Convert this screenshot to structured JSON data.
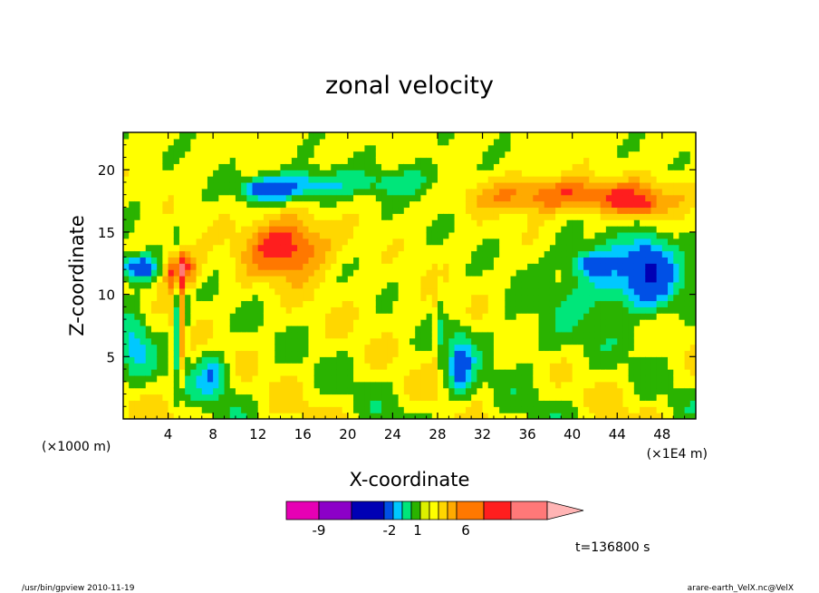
{
  "chart_data": {
    "type": "heatmap",
    "title": "zonal velocity",
    "xlabel": "X-coordinate",
    "ylabel": "Z-coordinate",
    "x_scale_label": "(×1000 m)",
    "x_unit_label": "(×1E4 m)",
    "xlim": [
      0,
      51
    ],
    "ylim": [
      0,
      23
    ],
    "xticks": [
      "4",
      "8",
      "12",
      "16",
      "20",
      "24",
      "28",
      "32",
      "36",
      "40",
      "44",
      "48"
    ],
    "xtick_values": [
      4,
      8,
      12,
      16,
      20,
      24,
      28,
      32,
      36,
      40,
      44,
      48
    ],
    "yticks": [
      "5",
      "10",
      "15",
      "20"
    ],
    "ytick_values": [
      5,
      10,
      15,
      20
    ],
    "colorbar": {
      "labels": [
        {
          "text": "-9",
          "value": -9
        },
        {
          "text": "-2",
          "value": -2
        },
        {
          "text": "1",
          "value": 1
        },
        {
          "text": "6",
          "value": 6
        }
      ],
      "colors": [
        "#e600b4",
        "#8c00c8",
        "#0000b4",
        "#0050e6",
        "#00c8ff",
        "#00e67a",
        "#2ab300",
        "#dcf000",
        "#ffff00",
        "#ffd700",
        "#ffaa00",
        "#ff7800",
        "#ff1e1e",
        "#ff7878",
        "#ffb4b4"
      ]
    },
    "time_label": "t=136800 s",
    "value_levels": [
      -12,
      -9,
      -6,
      -3,
      -2,
      -1,
      0,
      1,
      2,
      3,
      4,
      6,
      9,
      12
    ],
    "regions": [
      {
        "name": "upper-left blue jet",
        "x": [
          11,
          16
        ],
        "z": [
          17.5,
          19.5
        ],
        "u": -4
      },
      {
        "name": "left blue band",
        "x": [
          0,
          4
        ],
        "z": [
          11,
          13.5
        ],
        "u": -4
      },
      {
        "name": "orange lobe",
        "x": [
          11,
          19
        ],
        "z": [
          12,
          16.5
        ],
        "u": 4
      },
      {
        "name": "right blue core",
        "x": [
          40,
          51
        ],
        "z": [
          9,
          14.5
        ],
        "u": -3
      },
      {
        "name": "right orange band",
        "x": [
          33,
          48
        ],
        "z": [
          16,
          19
        ],
        "u": 3
      }
    ]
  },
  "footer": {
    "left": "/usr/bin/gpview  2010-11-19",
    "right": "arare-earth_VelX.nc@VelX"
  }
}
